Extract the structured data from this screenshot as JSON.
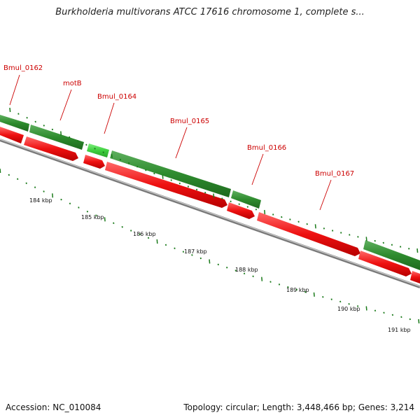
{
  "title": "Burkholderia multivorans ATCC 17616 chromosome 1, complete s...",
  "footer": {
    "accession": "Accession: NC_010084",
    "summary": "Topology: circular; Length: 3,448,466 bp; Genes: 3,214"
  },
  "gene_labels": [
    "Bmul_0162",
    "motB",
    "Bmul_0164",
    "Bmul_0165",
    "Bmul_0166",
    "Bmul_0167"
  ],
  "kbp_labels": [
    "184 kbp",
    "185 kbp",
    "186 kbp",
    "187 kbp",
    "188 kbp",
    "189 kbp",
    "190 kbp",
    "191 kbp"
  ],
  "colors": {
    "forward_gene_dark": "#2e8b2e",
    "forward_gene_light": "#3fcf3f",
    "reverse_gene": "#ee1111",
    "backbone": "#888888",
    "tick": "#1a7a1a",
    "label": "#cc0000"
  }
}
